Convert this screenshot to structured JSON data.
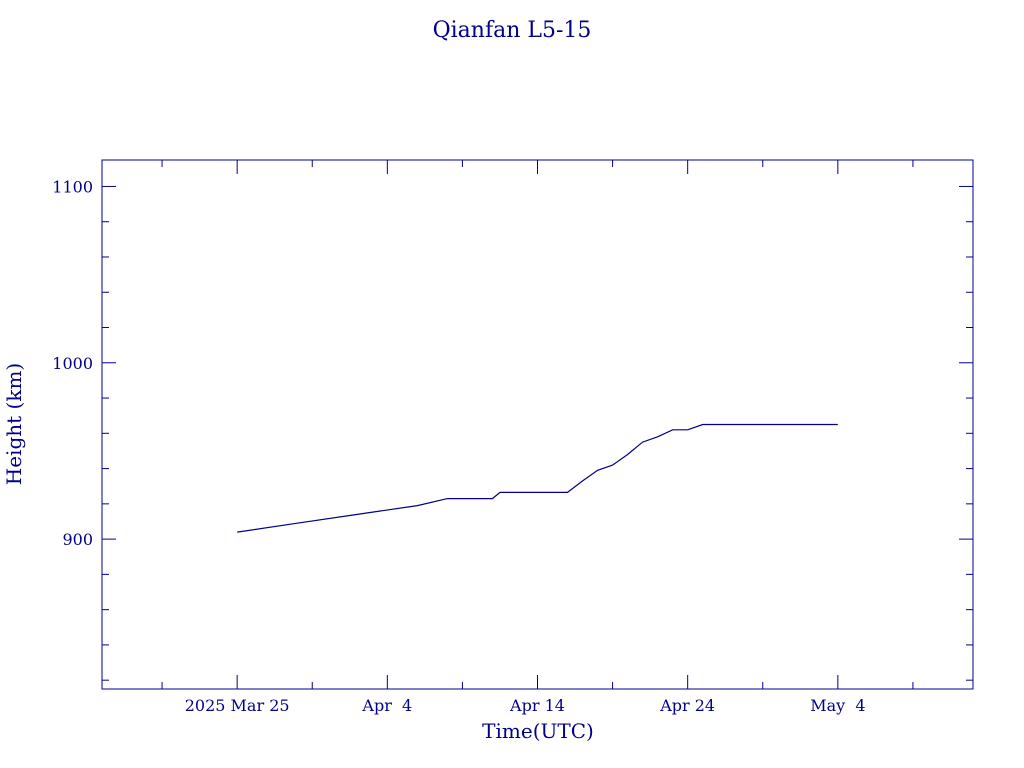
{
  "chart_data": {
    "type": "line",
    "title": "Qianfan L5-15",
    "xlabel": "Time(UTC)",
    "ylabel": "Height (km)",
    "color": "#00008B",
    "x_tick_labels": [
      "2025 Mar 25",
      "Apr  4",
      "Apr 14",
      "Apr 24",
      "May  4"
    ],
    "x_tick_dates": [
      "2025-03-25",
      "2025-04-04",
      "2025-04-14",
      "2025-04-24",
      "2025-05-04"
    ],
    "xlim": [
      "2025-03-16",
      "2025-05-13"
    ],
    "ylim": [
      815,
      1115
    ],
    "y_ticks": [
      900,
      1000,
      1100
    ],
    "y_minor_step": 20,
    "x_minor_step_days": 5,
    "grid": false,
    "series": [
      {
        "x": [
          "2025-03-25",
          "2025-03-29",
          "2025-04-02",
          "2025-04-06",
          "2025-04-08",
          "2025-04-11",
          "2025-04-11 12:00",
          "2025-04-16",
          "2025-04-17",
          "2025-04-18",
          "2025-04-19",
          "2025-04-20",
          "2025-04-21",
          "2025-04-22",
          "2025-04-23",
          "2025-04-24",
          "2025-04-25",
          "2025-05-04"
        ],
        "y": [
          904,
          909,
          914,
          919,
          923,
          923,
          926.5,
          926.5,
          933,
          939,
          942,
          948,
          955,
          958,
          962,
          962,
          965,
          965
        ]
      }
    ]
  }
}
